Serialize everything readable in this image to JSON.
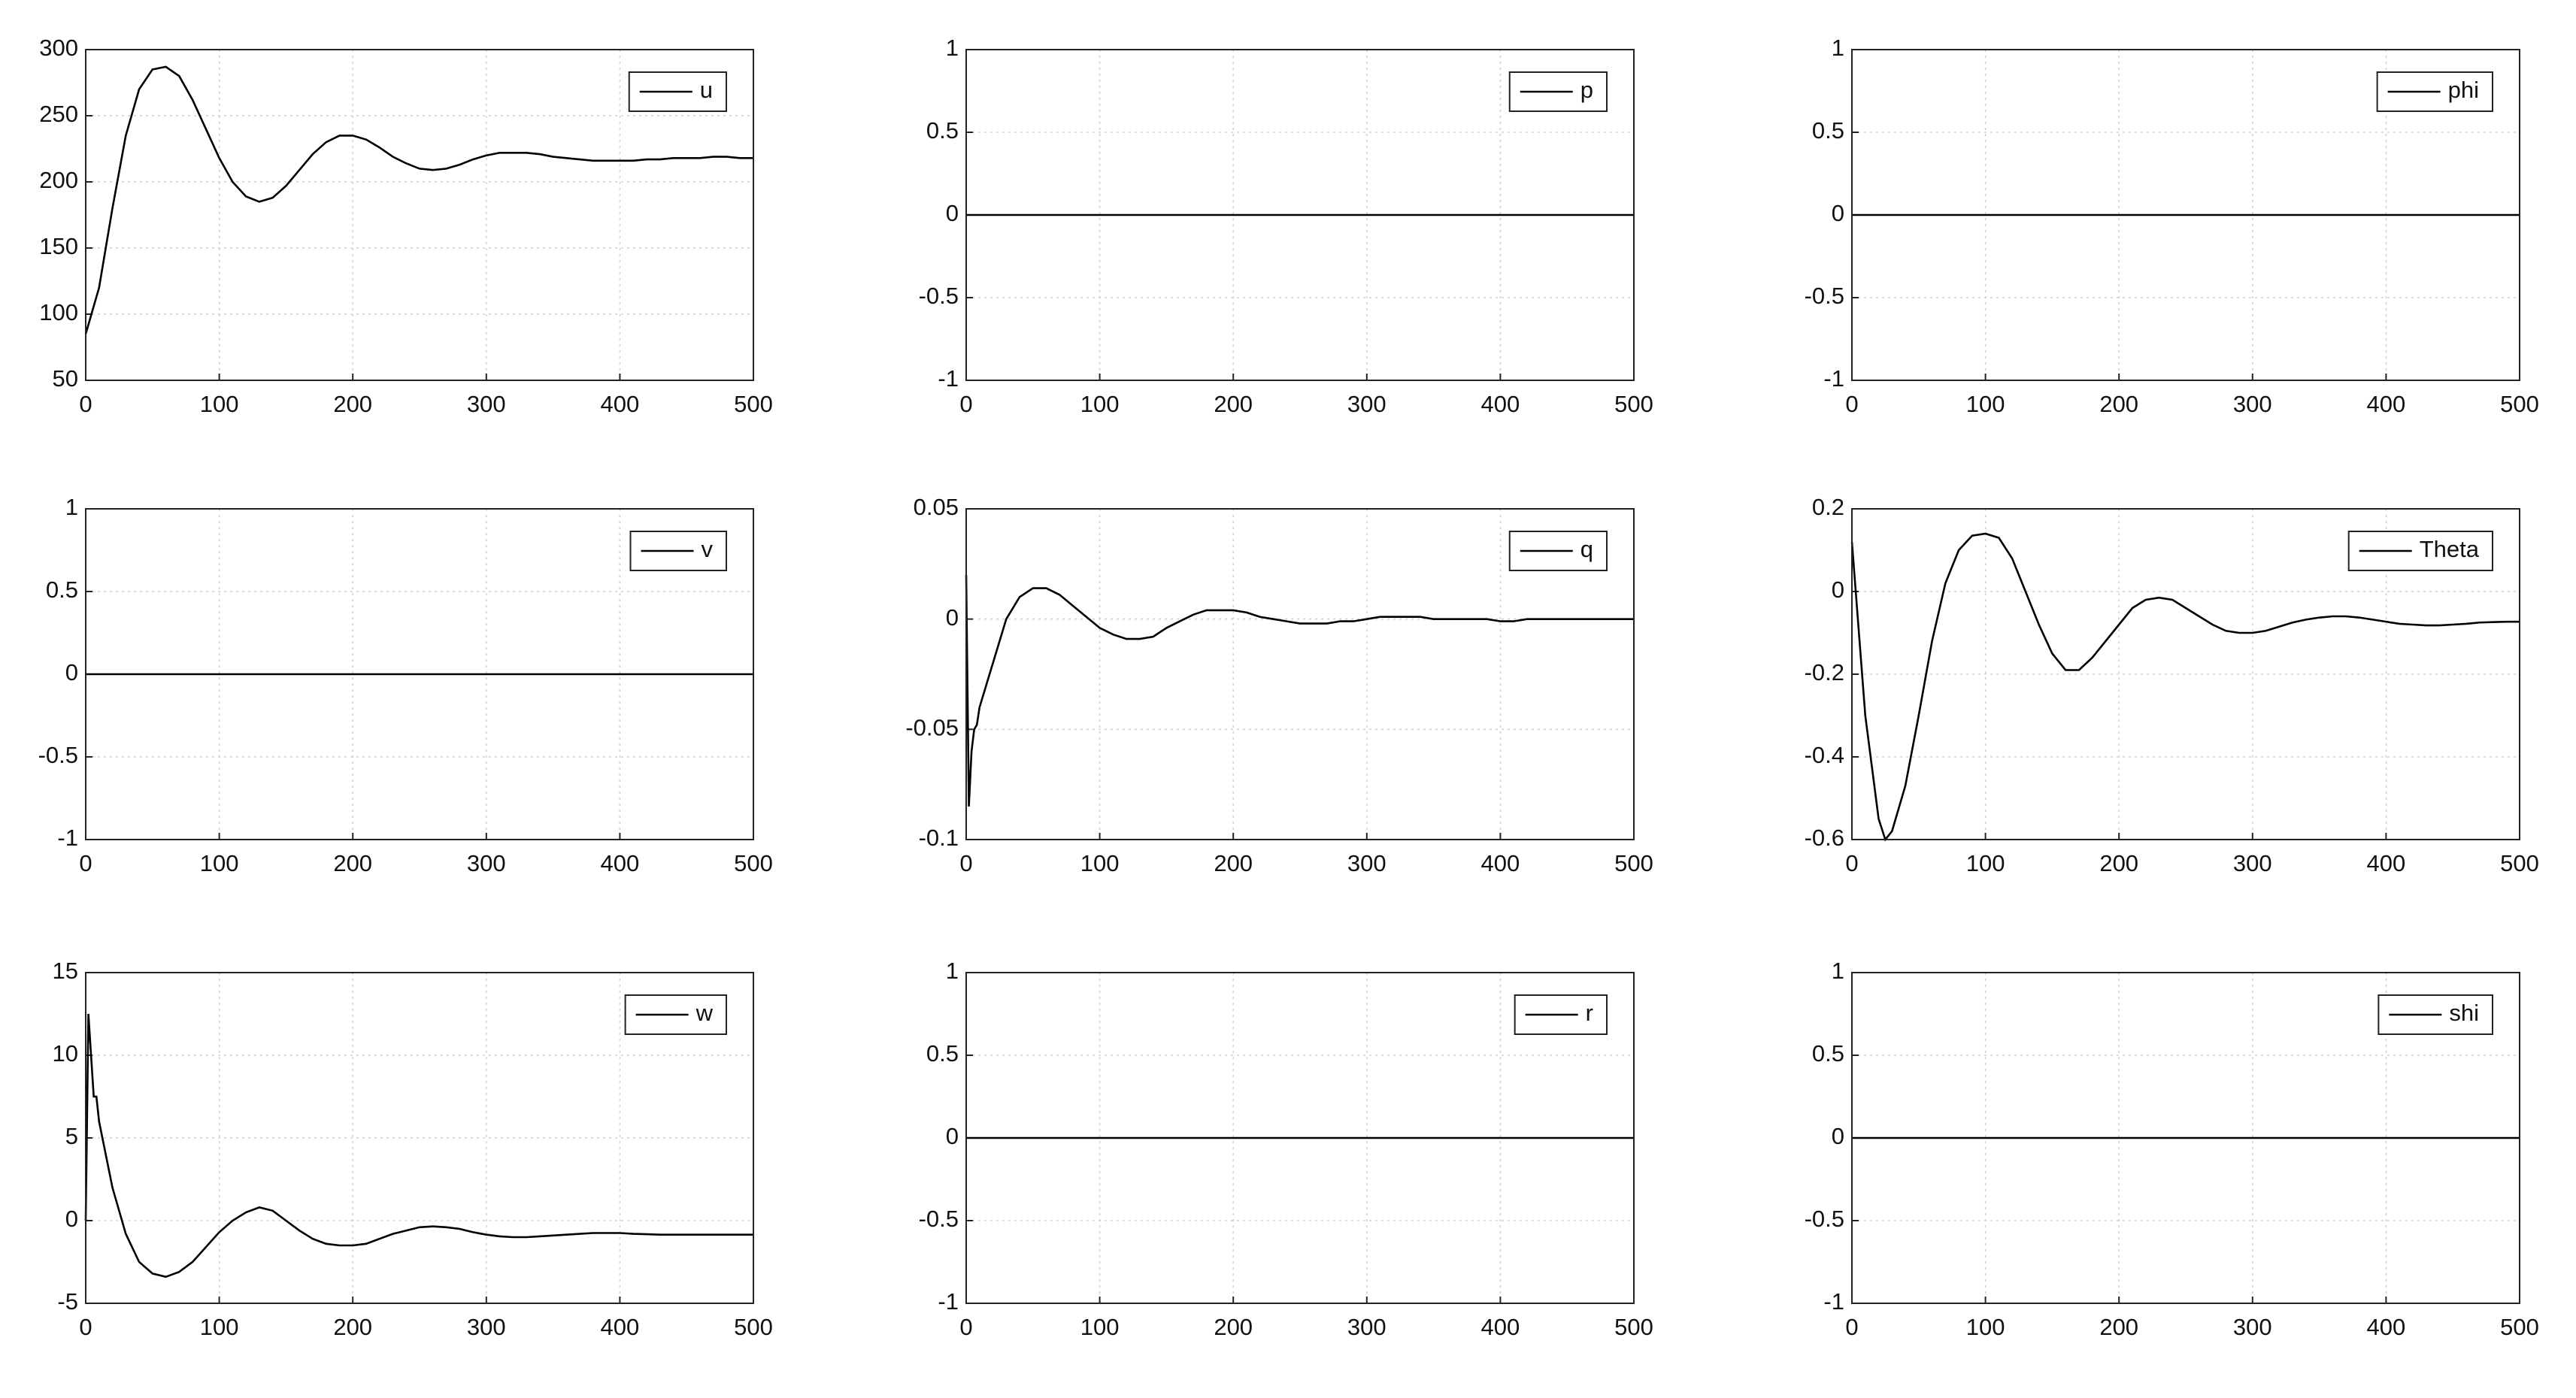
{
  "chart_data": [
    {
      "type": "line",
      "x": [
        0,
        10,
        20,
        30,
        40,
        50,
        60,
        70,
        80,
        90,
        100,
        110,
        120,
        130,
        140,
        150,
        160,
        170,
        180,
        190,
        200,
        210,
        220,
        230,
        240,
        250,
        260,
        270,
        280,
        290,
        300,
        310,
        320,
        330,
        340,
        350,
        360,
        370,
        380,
        390,
        400,
        410,
        420,
        430,
        440,
        450,
        460,
        470,
        480,
        490,
        500
      ],
      "series": [
        {
          "name": "u",
          "color": "#000000",
          "values": [
            85,
            120,
            180,
            235,
            270,
            285,
            287,
            280,
            262,
            240,
            218,
            200,
            189,
            185,
            188,
            197,
            209,
            221,
            230,
            235,
            235,
            232,
            226,
            219,
            214,
            210,
            209,
            210,
            213,
            217,
            220,
            222,
            222,
            222,
            221,
            219,
            218,
            217,
            216,
            216,
            216,
            216,
            217,
            217,
            218,
            218,
            218,
            219,
            219,
            218,
            218
          ]
        }
      ],
      "xlim": [
        0,
        500
      ],
      "ylim": [
        50,
        300
      ],
      "xticks": [
        0,
        100,
        200,
        300,
        400,
        500
      ],
      "yticks": [
        50,
        100,
        150,
        200,
        250,
        300
      ],
      "grid": true,
      "legend": "upper right"
    },
    {
      "type": "line",
      "x": [
        0,
        500
      ],
      "series": [
        {
          "name": "p",
          "color": "#000000",
          "values": [
            0,
            0
          ]
        }
      ],
      "xlim": [
        0,
        500
      ],
      "ylim": [
        -1,
        1
      ],
      "xticks": [
        0,
        100,
        200,
        300,
        400,
        500
      ],
      "yticks": [
        -1,
        -0.5,
        0,
        0.5,
        1
      ],
      "grid": true,
      "legend": "upper right"
    },
    {
      "type": "line",
      "x": [
        0,
        500
      ],
      "series": [
        {
          "name": "phi",
          "color": "#000000",
          "values": [
            0,
            0
          ]
        }
      ],
      "xlim": [
        0,
        500
      ],
      "ylim": [
        -1,
        1
      ],
      "xticks": [
        0,
        100,
        200,
        300,
        400,
        500
      ],
      "yticks": [
        -1,
        -0.5,
        0,
        0.5,
        1
      ],
      "grid": true,
      "legend": "upper right"
    },
    {
      "type": "line",
      "x": [
        0,
        500
      ],
      "series": [
        {
          "name": "v",
          "color": "#000000",
          "values": [
            0,
            0
          ]
        }
      ],
      "xlim": [
        0,
        500
      ],
      "ylim": [
        -1,
        1
      ],
      "xticks": [
        0,
        100,
        200,
        300,
        400,
        500
      ],
      "yticks": [
        -1,
        -0.5,
        0,
        0.5,
        1
      ],
      "grid": true,
      "legend": "upper right"
    },
    {
      "type": "line",
      "x": [
        0,
        2,
        4,
        6,
        8,
        10,
        20,
        30,
        40,
        50,
        60,
        70,
        80,
        90,
        100,
        110,
        120,
        130,
        140,
        150,
        160,
        170,
        180,
        190,
        200,
        210,
        220,
        230,
        240,
        250,
        260,
        270,
        280,
        290,
        300,
        310,
        320,
        330,
        340,
        350,
        360,
        370,
        380,
        390,
        400,
        410,
        420,
        430,
        440,
        450,
        460,
        470,
        480,
        490,
        500
      ],
      "series": [
        {
          "name": "q",
          "color": "#000000",
          "values": [
            0.02,
            -0.085,
            -0.06,
            -0.05,
            -0.048,
            -0.04,
            -0.02,
            0,
            0.01,
            0.014,
            0.014,
            0.011,
            0.006,
            0.001,
            -0.004,
            -0.007,
            -0.009,
            -0.009,
            -0.008,
            -0.004,
            -0.001,
            0.002,
            0.004,
            0.004,
            0.004,
            0.003,
            0.001,
            0,
            -0.001,
            -0.002,
            -0.002,
            -0.002,
            -0.001,
            -0.001,
            0,
            0.001,
            0.001,
            0.001,
            0.001,
            0,
            0,
            0,
            0,
            0,
            -0.001,
            -0.001,
            0,
            0,
            0,
            0,
            0,
            0,
            0,
            0,
            0
          ]
        }
      ],
      "xlim": [
        0,
        500
      ],
      "ylim": [
        -0.1,
        0.05
      ],
      "xticks": [
        0,
        100,
        200,
        300,
        400,
        500
      ],
      "yticks": [
        -0.1,
        -0.05,
        0,
        0.05
      ],
      "grid": true,
      "legend": "upper right"
    },
    {
      "type": "line",
      "x": [
        0,
        10,
        20,
        25,
        30,
        40,
        50,
        60,
        70,
        80,
        90,
        100,
        110,
        120,
        130,
        140,
        150,
        160,
        170,
        180,
        190,
        200,
        210,
        220,
        230,
        240,
        250,
        260,
        270,
        280,
        290,
        300,
        310,
        320,
        330,
        340,
        350,
        360,
        370,
        380,
        390,
        400,
        410,
        420,
        430,
        440,
        450,
        460,
        470,
        480,
        490,
        500
      ],
      "series": [
        {
          "name": "Theta",
          "color": "#000000",
          "values": [
            0.12,
            -0.3,
            -0.55,
            -0.6,
            -0.58,
            -0.47,
            -0.3,
            -0.12,
            0.02,
            0.1,
            0.135,
            0.14,
            0.13,
            0.08,
            0,
            -0.08,
            -0.15,
            -0.19,
            -0.19,
            -0.16,
            -0.12,
            -0.08,
            -0.04,
            -0.02,
            -0.015,
            -0.02,
            -0.04,
            -0.06,
            -0.08,
            -0.095,
            -0.1,
            -0.1,
            -0.095,
            -0.085,
            -0.075,
            -0.068,
            -0.063,
            -0.06,
            -0.06,
            -0.063,
            -0.068,
            -0.073,
            -0.078,
            -0.08,
            -0.082,
            -0.082,
            -0.08,
            -0.078,
            -0.075,
            -0.074,
            -0.073,
            -0.073
          ]
        }
      ],
      "xlim": [
        0,
        500
      ],
      "ylim": [
        -0.6,
        0.2
      ],
      "xticks": [
        0,
        100,
        200,
        300,
        400,
        500
      ],
      "yticks": [
        -0.6,
        -0.4,
        -0.2,
        0,
        0.2
      ],
      "grid": true,
      "legend": "upper right"
    },
    {
      "type": "line",
      "x": [
        0,
        2,
        4,
        6,
        8,
        10,
        20,
        30,
        40,
        50,
        60,
        70,
        80,
        90,
        100,
        110,
        120,
        130,
        140,
        150,
        160,
        170,
        180,
        190,
        200,
        210,
        220,
        230,
        240,
        250,
        260,
        270,
        280,
        290,
        300,
        310,
        320,
        330,
        340,
        350,
        360,
        370,
        380,
        390,
        400,
        410,
        420,
        430,
        440,
        450,
        460,
        470,
        480,
        490,
        500
      ],
      "series": [
        {
          "name": "w",
          "color": "#000000",
          "values": [
            0,
            12.5,
            10,
            7.5,
            7.5,
            6,
            2,
            -0.8,
            -2.5,
            -3.2,
            -3.4,
            -3.1,
            -2.5,
            -1.6,
            -0.7,
            0,
            0.5,
            0.8,
            0.6,
            0,
            -0.6,
            -1.1,
            -1.4,
            -1.5,
            -1.5,
            -1.4,
            -1.1,
            -0.8,
            -0.6,
            -0.4,
            -0.35,
            -0.4,
            -0.5,
            -0.7,
            -0.85,
            -0.95,
            -1,
            -1,
            -0.95,
            -0.9,
            -0.85,
            -0.8,
            -0.75,
            -0.75,
            -0.75,
            -0.8,
            -0.82,
            -0.85,
            -0.85,
            -0.85,
            -0.85,
            -0.85,
            -0.85,
            -0.85,
            -0.85
          ]
        }
      ],
      "xlim": [
        0,
        500
      ],
      "ylim": [
        -5,
        15
      ],
      "xticks": [
        0,
        100,
        200,
        300,
        400,
        500
      ],
      "yticks": [
        -5,
        0,
        5,
        10,
        15
      ],
      "grid": true,
      "legend": "upper right"
    },
    {
      "type": "line",
      "x": [
        0,
        500
      ],
      "series": [
        {
          "name": "r",
          "color": "#000000",
          "values": [
            0,
            0
          ]
        }
      ],
      "xlim": [
        0,
        500
      ],
      "ylim": [
        -1,
        1
      ],
      "xticks": [
        0,
        100,
        200,
        300,
        400,
        500
      ],
      "yticks": [
        -1,
        -0.5,
        0,
        0.5,
        1
      ],
      "grid": true,
      "legend": "upper right"
    },
    {
      "type": "line",
      "x": [
        0,
        500
      ],
      "series": [
        {
          "name": "shi",
          "color": "#000000",
          "values": [
            0,
            0
          ]
        }
      ],
      "xlim": [
        0,
        500
      ],
      "ylim": [
        -1,
        1
      ],
      "xticks": [
        0,
        100,
        200,
        300,
        400,
        500
      ],
      "yticks": [
        -1,
        -0.5,
        0,
        0.5,
        1
      ],
      "grid": true,
      "legend": "upper right"
    }
  ]
}
